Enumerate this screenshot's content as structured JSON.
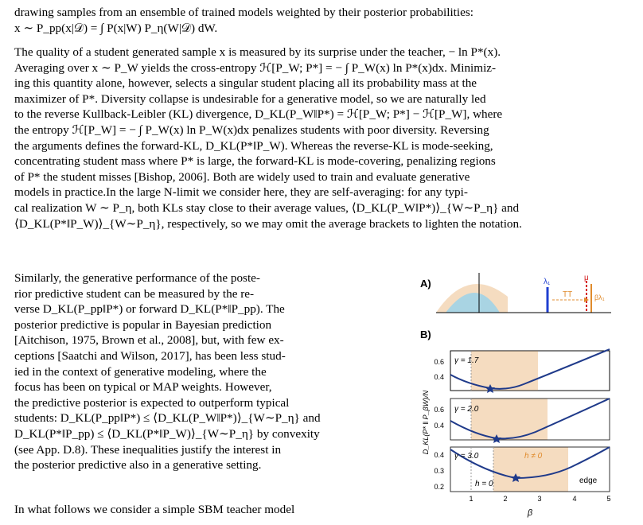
{
  "text": {
    "p0": [
      "drawing samples from an ensemble of trained models weighted by their posterior probabilities:",
      "x ∼ P_pp(x|𝒟) = ∫ P(x|W) P_η(W|𝒟) dW."
    ],
    "p1": [
      "The quality of a student generated sample x is measured by its surprise under the teacher, − ln P*(x).",
      "Averaging over x ∼ P_W yields the cross-entropy ℋ[P_W; P*] = − ∫ P_W(x) ln P*(x)dx. Minimiz-",
      "ing this quantity alone, however, selects a singular student placing all its probability mass at the",
      "maximizer of P*. Diversity collapse is undesirable for a generative model, so we are naturally led",
      "to the reverse Kullback-Leibler (KL) divergence, D_KL(P_W‖P*) = ℋ[P_W; P*] − ℋ[P_W], where",
      "the entropy ℋ[P_W] = − ∫ P_W(x) ln P_W(x)dx penalizes students with poor diversity. Reversing",
      "the arguments defines the forward-KL, D_KL(P*‖P_W). Whereas the reverse-KL is mode-seeking,",
      "concentrating student mass where P* is large, the forward-KL is mode-covering, penalizing regions",
      "of P* the student misses [Bishop, 2006]. Both are widely used to train and evaluate generative",
      "models in practice.In the large N-limit we consider here, they are self-averaging: for any typi-",
      "cal realization W ∼ P_η, both KLs stay close to their average values, ⟨D_KL(P_W‖P*)⟩_{W∼P_η} and",
      "⟨D_KL(P*‖P_W)⟩_{W∼P_η}, respectively, so we may omit the average brackets to lighten the notation."
    ],
    "p2": [
      "Similarly, the generative performance of the poste-",
      "rior predictive student can be measured by the re-",
      "verse D_KL(P_pp‖P*) or forward D_KL(P*‖P_pp). The",
      "posterior predictive is popular in Bayesian prediction",
      "[Aitchison, 1975, Brown et al., 2008], but, with few ex-",
      "ceptions [Saatchi and Wilson, 2017], has been less stud-",
      "ied in the context of generative modeling, where the",
      "focus has been on typical or MAP weights. However,",
      "the predictive posterior is expected to outperform typical",
      "students: D_KL(P_pp‖P*) ≤ ⟨D_KL(P_W‖P*)⟩_{W∼P_η} and",
      "D_KL(P*‖P_pp) ≤ ⟨D_KL(P*‖P_W)⟩_{W∼P_η} by convexity",
      "(see App. D.8). These inequalities justify the interest in",
      "the posterior predictive also in a generative setting."
    ],
    "p3": "In what follows we consider a simple SBM teacher model"
  },
  "figure": {
    "panel_a_label": "A)",
    "panel_b_label": "B)",
    "lambda_label": "λ₁",
    "mu_label": "μ",
    "beta_lambda_label": "βλ₁",
    "arrow_label": "TT",
    "ylabel": "D_KL(P* ‖ P_βW)/N",
    "xlabel": "β",
    "panels": [
      {
        "gamma": "γ = 1.7",
        "yticks": [
          "0.6",
          "0.4"
        ]
      },
      {
        "gamma": "γ = 2.0",
        "yticks": [
          "0.6",
          "0.4"
        ]
      },
      {
        "gamma": "γ = 3.0",
        "yticks": [
          "0.4",
          "0.3",
          "0.2"
        ],
        "h0": "h = 0",
        "hnz": "h ≠ 0",
        "edge": "edge"
      }
    ],
    "xticks": [
      "1",
      "2",
      "3",
      "4",
      "5"
    ],
    "colors": {
      "curve": "#1f3a8a",
      "shade": "#f5dcc0",
      "blob": "#a9d4e3",
      "lambda": "#1f3fd0",
      "mu": "#d62728",
      "beta": "#e08b2c"
    }
  }
}
